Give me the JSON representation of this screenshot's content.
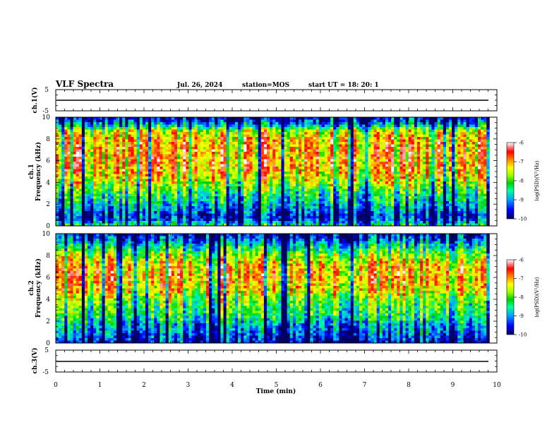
{
  "header": {
    "title": "VLF Spectra",
    "date": "Jul. 26, 2024",
    "station": "station=MOS",
    "start": "start UT =  18: 20: 1"
  },
  "colorbar_colors": [
    "#000060",
    "#0000ff",
    "#00a0ff",
    "#00ffa0",
    "#00d000",
    "#a0ff00",
    "#ffff00",
    "#ff8000",
    "#ff0000",
    "#ffffff"
  ],
  "chart_data": [
    {
      "type": "line",
      "ylabel": "ch.1(V)",
      "ylim": [
        -5,
        5
      ],
      "yticks": [
        "5",
        "-5"
      ],
      "xlim": [
        0,
        10
      ],
      "level": 0,
      "grid": false
    },
    {
      "type": "heatmap",
      "ylabel_line1": "ch.1",
      "ylabel_line2": "Frequency (kHz)",
      "ylim": [
        0,
        10
      ],
      "yticks": [
        "0",
        "2",
        "4",
        "6",
        "8",
        "10"
      ],
      "xlim": [
        0,
        9.83
      ],
      "intensity_profile": [
        {
          "f_khz": 0.0,
          "log_psd": -8.3
        },
        {
          "f_khz": 0.5,
          "log_psd": -9.3
        },
        {
          "f_khz": 1.0,
          "log_psd": -9.5
        },
        {
          "f_khz": 1.7,
          "log_psd": -9.0
        },
        {
          "f_khz": 2.3,
          "log_psd": -8.6
        },
        {
          "f_khz": 3.0,
          "log_psd": -8.3
        },
        {
          "f_khz": 4.0,
          "log_psd": -7.6
        },
        {
          "f_khz": 5.0,
          "log_psd": -7.1
        },
        {
          "f_khz": 6.0,
          "log_psd": -7.0
        },
        {
          "f_khz": 7.0,
          "log_psd": -7.0
        },
        {
          "f_khz": 8.0,
          "log_psd": -7.1
        },
        {
          "f_khz": 8.7,
          "log_psd": -7.5
        },
        {
          "f_khz": 9.2,
          "log_psd": -8.6
        },
        {
          "f_khz": 9.6,
          "log_psd": -9.4
        },
        {
          "f_khz": 10.0,
          "log_psd": -9.7
        }
      ],
      "colorbar": {
        "label": "log(PSD)(V²/Hz)",
        "ticks": [
          "-6",
          "-7",
          "-8",
          "-9",
          "-10"
        ],
        "range": [
          -10,
          -6
        ]
      }
    },
    {
      "type": "heatmap",
      "ylabel_line1": "ch.2",
      "ylabel_line2": "Frequency (kHz)",
      "ylim": [
        0,
        10
      ],
      "yticks": [
        "0",
        "2",
        "4",
        "6",
        "8",
        "10"
      ],
      "xlim": [
        0,
        9.83
      ],
      "intensity_profile": [
        {
          "f_khz": 0.0,
          "log_psd": -9.7
        },
        {
          "f_khz": 0.4,
          "log_psd": -9.6
        },
        {
          "f_khz": 1.0,
          "log_psd": -9.2
        },
        {
          "f_khz": 1.7,
          "log_psd": -9.0
        },
        {
          "f_khz": 2.3,
          "log_psd": -8.5
        },
        {
          "f_khz": 3.0,
          "log_psd": -8.3
        },
        {
          "f_khz": 4.0,
          "log_psd": -7.9
        },
        {
          "f_khz": 5.0,
          "log_psd": -7.3
        },
        {
          "f_khz": 6.0,
          "log_psd": -7.1
        },
        {
          "f_khz": 7.0,
          "log_psd": -7.2
        },
        {
          "f_khz": 8.0,
          "log_psd": -7.8
        },
        {
          "f_khz": 9.0,
          "log_psd": -8.8
        },
        {
          "f_khz": 9.5,
          "log_psd": -9.4
        },
        {
          "f_khz": 10.0,
          "log_psd": -9.8
        }
      ],
      "colorbar": {
        "label": "log(PSD)(V²/Hz)",
        "ticks": [
          "-6",
          "-7",
          "-8",
          "-9",
          "-10"
        ],
        "range": [
          -10,
          -6
        ]
      }
    },
    {
      "type": "line",
      "ylabel": "ch.3(V)",
      "ylim": [
        -5,
        5
      ],
      "yticks": [
        "5",
        "-5"
      ],
      "xlim": [
        0,
        10
      ],
      "level": -0.5,
      "grid": false,
      "xlabel": "Time (min)",
      "xticks": [
        "0",
        "1",
        "2",
        "3",
        "4",
        "5",
        "6",
        "7",
        "8",
        "9",
        "10"
      ]
    }
  ]
}
